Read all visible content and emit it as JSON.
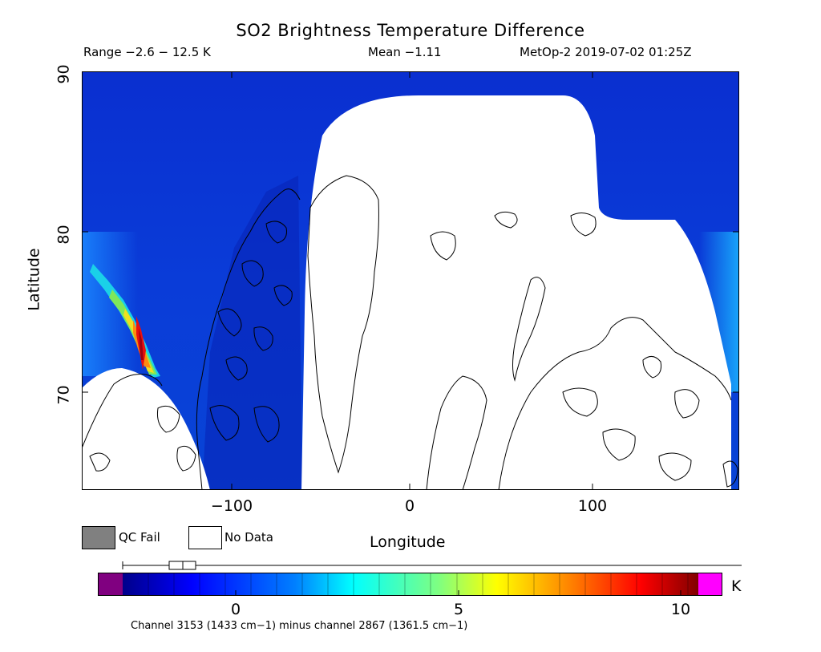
{
  "title": "SO2 Brightness Temperature Difference",
  "header": {
    "range": "Range −2.6 − 12.5 K",
    "mean": "Mean −1.11",
    "satellite": "MetOp-2 2019-07-02 01:25Z"
  },
  "axes": {
    "ylabel": "Latitude",
    "xlabel": "Longitude",
    "yticks": [
      "90",
      "80",
      "70"
    ],
    "xticks": [
      "−100",
      "0",
      "100"
    ]
  },
  "legend": {
    "qc_fail": "QC Fail",
    "no_data": "No Data"
  },
  "colorbar": {
    "ticks": [
      "0",
      "5",
      "10"
    ],
    "unit": "K",
    "note": "Channel 3153 (1433 cm−1) minus channel 2867 (1361.5 cm−1)"
  },
  "colors": {
    "qc_fail": "#808080",
    "no_data": "#ffffff",
    "under": "#800080",
    "over": "#ff00ff",
    "background_field": "#0a3cd8"
  },
  "map": {
    "projection": "equirectangular",
    "lon_range": [
      -180,
      180
    ],
    "lat_range": [
      64,
      90
    ],
    "plume": "high values near 150W, 70–77N"
  }
}
